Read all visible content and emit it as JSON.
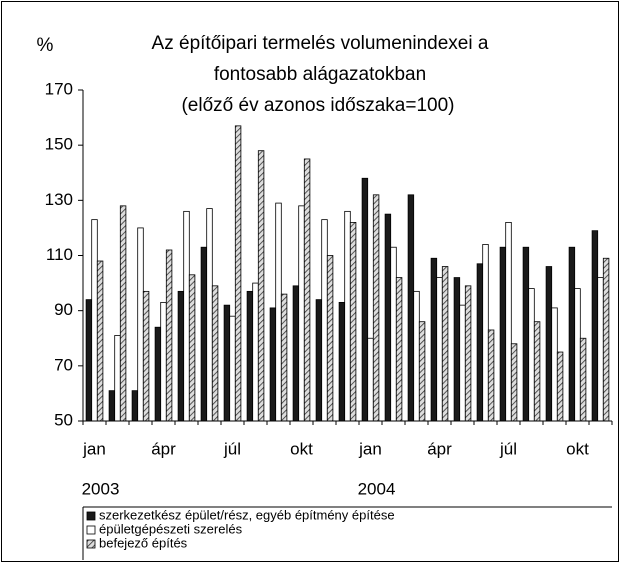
{
  "chart_data": {
    "type": "bar",
    "title_lines": [
      "Az építőipari termelés volumenindexei a",
      "fontosabb alágazatokban",
      "(előző év azonos időszaka=100)"
    ],
    "y_label": "%",
    "categories": [
      "jan",
      null,
      null,
      "ápr",
      null,
      null,
      "júl",
      null,
      null,
      "okt",
      null,
      null,
      "jan",
      null,
      null,
      "ápr",
      null,
      null,
      "júl",
      null,
      null,
      "okt",
      null
    ],
    "year_labels": [
      "2003",
      "2004"
    ],
    "series": [
      {
        "name": "szerkezetkész épület/rész, egyéb építmény építése",
        "color": "#1a1a1a",
        "values": [
          94,
          61,
          61,
          84,
          97,
          113,
          92,
          97,
          91,
          99,
          94,
          93,
          138,
          125,
          132,
          109,
          102,
          107,
          113,
          113,
          106,
          113,
          119
        ]
      },
      {
        "name": "épületgépészeti szerelés",
        "color": "#ffffff",
        "values": [
          123,
          81,
          120,
          93,
          126,
          127,
          88,
          100,
          129,
          128,
          123,
          126,
          80,
          113,
          97,
          102,
          92,
          114,
          122,
          98,
          91,
          98,
          102
        ]
      },
      {
        "name": "befejező építés",
        "color": "#808080",
        "hatch": true,
        "values": [
          108,
          128,
          97,
          112,
          103,
          99,
          157,
          148,
          96,
          145,
          110,
          122,
          132,
          102,
          86,
          106,
          99,
          83,
          78,
          86,
          75,
          80,
          109
        ]
      }
    ],
    "ylim": [
      50,
      170
    ],
    "yticks": [
      50,
      70,
      90,
      110,
      130,
      150,
      170
    ]
  }
}
